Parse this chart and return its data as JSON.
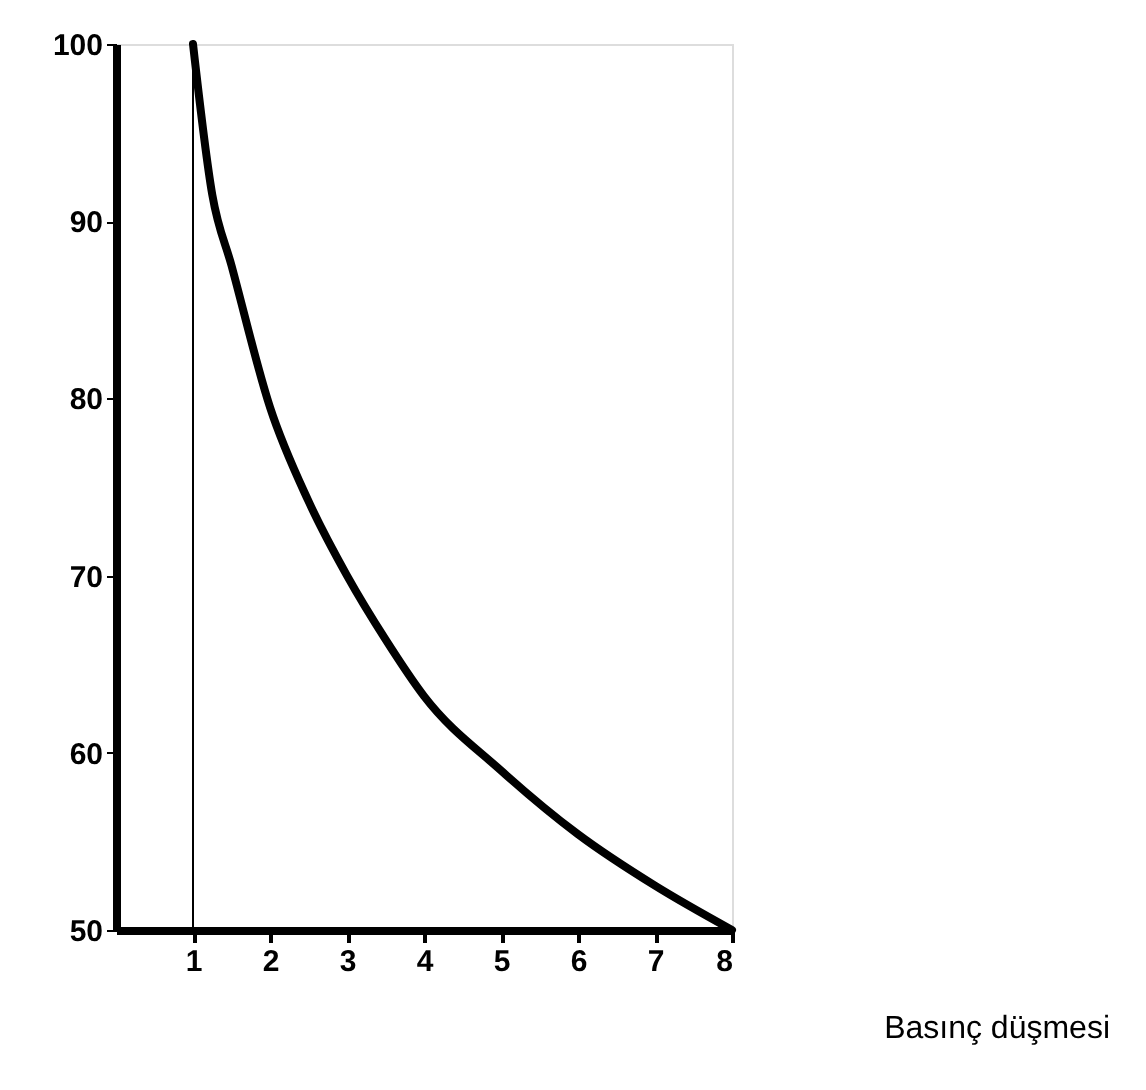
{
  "chart_data": {
    "type": "line",
    "xlabel": "Basınç düşmesi",
    "x": [
      1,
      1.25,
      1.5,
      2,
      2.5,
      3,
      3.5,
      4,
      5,
      6,
      7,
      8
    ],
    "series": [
      {
        "color": "#000000",
        "values": [
          100,
          91.5,
          87.5,
          79.5,
          74.2,
          70,
          66.4,
          63.2,
          59,
          55.4,
          52.5,
          50
        ]
      }
    ],
    "xlim": [
      0,
      8
    ],
    "xticks": [
      1,
      2,
      3,
      4,
      5,
      6,
      7,
      8
    ],
    "ylim": [
      50,
      100
    ],
    "yticks": [
      50,
      60,
      70,
      80,
      90,
      100
    ],
    "ref_lines": [
      {
        "axis": "x",
        "value": 1,
        "color": "#000000"
      }
    ],
    "grid": false,
    "marker": "none",
    "line_style": "solid"
  }
}
